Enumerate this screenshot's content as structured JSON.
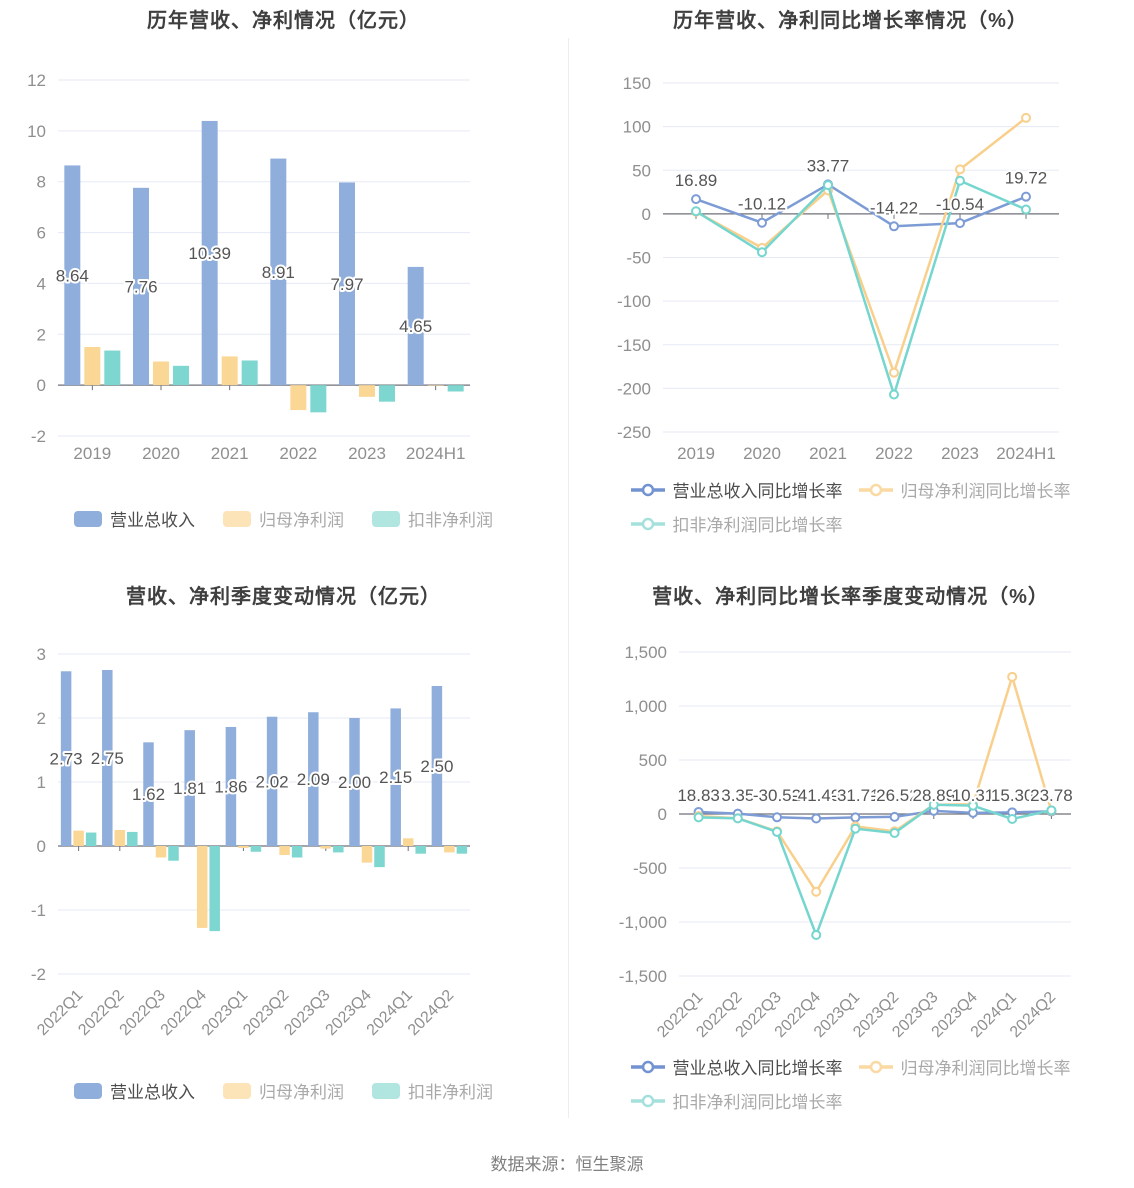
{
  "footer": {
    "source_label": "数据来源：恒生聚源"
  },
  "colors": {
    "grid": "#E5EAF6",
    "axis": "#6E7079",
    "tick": "#8F8F8F",
    "label": "#555555",
    "title": "#3F3F3F",
    "legend_active": "#4D4D4D",
    "legend_muted": "#A9A9A9",
    "divider": "#EDEDED",
    "footer": "#808080",
    "background": "#FFFFFF"
  },
  "chart_data": [
    {
      "type": "bar",
      "title": "历年营收、净利情况（亿元）",
      "categories": [
        "2019",
        "2020",
        "2021",
        "2022",
        "2023",
        "2024H1"
      ],
      "ylim": [
        -2,
        12
      ],
      "ystep": 2,
      "yticks": [
        "12",
        "10",
        "8",
        "6",
        "4",
        "2",
        "0",
        "-2"
      ],
      "grid": true,
      "legend_position": "bottom",
      "series": [
        {
          "name": "营业总收入",
          "color": "#8FAEDB",
          "legend_color": "#8FAEDB",
          "values": [
            8.64,
            7.76,
            10.39,
            8.91,
            7.97,
            4.65
          ],
          "data_labels": [
            "8.64",
            "7.76",
            "10.39",
            "8.91",
            "7.97",
            "4.65"
          ]
        },
        {
          "name": "归母净利润",
          "color": "#FBD795",
          "legend_color": "#FCE3B8",
          "values": [
            1.5,
            0.93,
            1.13,
            -0.98,
            -0.46,
            -0.02
          ]
        },
        {
          "name": "扣非净利润",
          "color": "#7DD6CF",
          "legend_color": "#B0E5E0",
          "values": [
            1.36,
            0.76,
            0.97,
            -1.07,
            -0.65,
            -0.25
          ]
        }
      ],
      "legend_rows": [
        [
          0,
          1,
          2
        ]
      ]
    },
    {
      "type": "line",
      "title": "历年营收、净利同比增长率情况（%）",
      "categories": [
        "2019",
        "2020",
        "2021",
        "2022",
        "2023",
        "2024H1"
      ],
      "ylim": [
        -250,
        150
      ],
      "ystep": 50,
      "yticks": [
        "150",
        "100",
        "50",
        "0",
        "-50",
        "-100",
        "-150",
        "-200",
        "-250"
      ],
      "grid": true,
      "legend_position": "bottom",
      "series": [
        {
          "name": "营业总收入同比增长率",
          "color": "#7D9CD6",
          "legend_color": "#7292D2",
          "values": [
            16.89,
            -10.12,
            33.77,
            -14.22,
            -10.54,
            19.72
          ],
          "data_labels": [
            "16.89",
            "-10.12",
            "33.77",
            "-14.22",
            "-10.54",
            "19.72"
          ]
        },
        {
          "name": "归母净利润同比增长率",
          "color": "#F9CF8C",
          "legend_color": "#FAD9A2",
          "values": [
            2.5,
            -39,
            27,
            -182,
            51,
            110
          ]
        },
        {
          "name": "扣非净利润同比增长率",
          "color": "#75D6CF",
          "legend_color": "#A5E1DC",
          "values": [
            3,
            -44,
            33,
            -207,
            38,
            5
          ]
        }
      ],
      "legend_rows": [
        [
          0,
          1
        ],
        [
          2
        ]
      ]
    },
    {
      "type": "bar",
      "title": "营收、净利季度变动情况（亿元）",
      "categories": [
        "2022Q1",
        "2022Q2",
        "2022Q3",
        "2022Q4",
        "2023Q1",
        "2023Q2",
        "2023Q3",
        "2023Q4",
        "2024Q1",
        "2024Q2"
      ],
      "ylim": [
        -2,
        3
      ],
      "ystep": 1,
      "yticks": [
        "3",
        "2",
        "1",
        "0",
        "-1",
        "-2"
      ],
      "grid": true,
      "rotated_xlabels": true,
      "legend_position": "bottom",
      "series": [
        {
          "name": "营业总收入",
          "color": "#8FAEDB",
          "legend_color": "#8FAEDB",
          "values": [
            2.73,
            2.75,
            1.62,
            1.81,
            1.86,
            2.02,
            2.09,
            2.0,
            2.15,
            2.5
          ],
          "data_labels": [
            "2.73",
            "2.75",
            "1.62",
            "1.81",
            "1.86",
            "2.02",
            "2.09",
            "2.00",
            "2.15",
            "2.50"
          ]
        },
        {
          "name": "归母净利润",
          "color": "#FBD795",
          "legend_color": "#FCE3B8",
          "values": [
            0.24,
            0.25,
            -0.18,
            -1.28,
            -0.03,
            -0.14,
            -0.04,
            -0.26,
            0.12,
            -0.1
          ]
        },
        {
          "name": "扣非净利润",
          "color": "#7DD6CF",
          "legend_color": "#B0E5E0",
          "values": [
            0.21,
            0.22,
            -0.23,
            -1.33,
            -0.09,
            -0.18,
            -0.1,
            -0.33,
            -0.12,
            -0.12
          ]
        }
      ],
      "legend_rows": [
        [
          0,
          1,
          2
        ]
      ]
    },
    {
      "type": "line",
      "title": "营收、净利同比增长率季度变动情况（%）",
      "categories": [
        "2022Q1",
        "2022Q2",
        "2022Q3",
        "2022Q4",
        "2023Q1",
        "2023Q2",
        "2023Q3",
        "2023Q4",
        "2024Q1",
        "2024Q2"
      ],
      "ylim": [
        -1500,
        1500
      ],
      "ystep": 500,
      "yticks": [
        "1,500",
        "1,000",
        "500",
        "0",
        "-500",
        "-1,000",
        "-1,500"
      ],
      "grid": true,
      "rotated_xlabels": true,
      "legend_position": "bottom",
      "series": [
        {
          "name": "营业总收入同比增长率",
          "color": "#7D9CD6",
          "legend_color": "#7292D2",
          "values": [
            18.83,
            3.35,
            -30.52,
            -41.49,
            -31.71,
            -26.52,
            28.89,
            10.31,
            15.3,
            23.78
          ],
          "data_labels": [
            "18.83",
            "3.35",
            "-30.52",
            "-41.49",
            "-31.71",
            "-26.52",
            "28.89",
            "10.31",
            "15.30",
            "23.78"
          ]
        },
        {
          "name": "归母净利润同比增长率",
          "color": "#F9CF8C",
          "legend_color": "#FAD9A2",
          "values": [
            -20,
            -39,
            -160,
            -720,
            -115,
            -160,
            86,
            90,
            1270,
            30
          ]
        },
        {
          "name": "扣非净利润同比增长率",
          "color": "#75D6CF",
          "legend_color": "#A5E1DC",
          "values": [
            -31,
            -40,
            -166,
            -1120,
            -136,
            -176,
            86,
            77,
            -46,
            34
          ]
        }
      ],
      "legend_rows": [
        [
          0,
          1
        ],
        [
          2
        ]
      ]
    }
  ]
}
